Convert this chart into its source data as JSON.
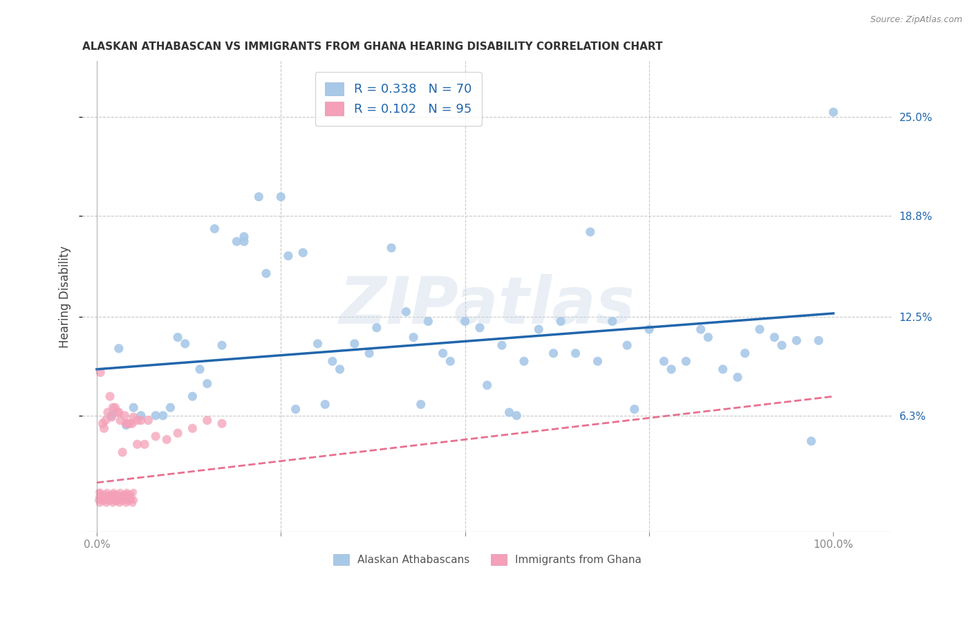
{
  "title": "ALASKAN ATHABASCAN VS IMMIGRANTS FROM GHANA HEARING DISABILITY CORRELATION CHART",
  "source": "Source: ZipAtlas.com",
  "ylabel": "Hearing Disability",
  "ytick_labels": [
    "6.3%",
    "12.5%",
    "18.8%",
    "25.0%"
  ],
  "ytick_values": [
    0.063,
    0.125,
    0.188,
    0.25
  ],
  "xlim": [
    -0.02,
    1.08
  ],
  "ylim": [
    -0.01,
    0.285
  ],
  "legend1_label": "R = 0.338   N = 70",
  "legend2_label": "R = 0.102   N = 95",
  "blue_color": "#a8c8e8",
  "pink_color": "#f4a0b8",
  "blue_line_color": "#2166ac",
  "pink_line_color": "#e87090",
  "background_color": "#ffffff",
  "watermark_text": "ZIPatlas",
  "blue_scatter_x": [
    0.03,
    0.05,
    0.08,
    0.1,
    0.13,
    0.15,
    0.17,
    0.2,
    0.2,
    0.22,
    0.25,
    0.28,
    0.3,
    0.32,
    0.35,
    0.38,
    0.4,
    0.42,
    0.45,
    0.48,
    0.5,
    0.52,
    0.55,
    0.58,
    0.6,
    0.63,
    0.65,
    0.68,
    0.7,
    0.72,
    0.75,
    0.78,
    0.8,
    0.82,
    0.85,
    0.88,
    0.9,
    0.92,
    0.95,
    0.98,
    1.0,
    0.06,
    0.09,
    0.12,
    0.16,
    0.19,
    0.23,
    0.27,
    0.33,
    0.37,
    0.43,
    0.47,
    0.53,
    0.57,
    0.62,
    0.67,
    0.73,
    0.77,
    0.83,
    0.87,
    0.93,
    0.97,
    0.02,
    0.04,
    0.11,
    0.14,
    0.26,
    0.31,
    0.44,
    0.56
  ],
  "blue_scatter_y": [
    0.105,
    0.068,
    0.063,
    0.068,
    0.075,
    0.083,
    0.107,
    0.175,
    0.172,
    0.2,
    0.2,
    0.165,
    0.108,
    0.097,
    0.108,
    0.118,
    0.168,
    0.128,
    0.122,
    0.097,
    0.122,
    0.118,
    0.107,
    0.097,
    0.117,
    0.122,
    0.102,
    0.097,
    0.122,
    0.107,
    0.117,
    0.092,
    0.097,
    0.117,
    0.092,
    0.102,
    0.117,
    0.112,
    0.11,
    0.11,
    0.253,
    0.063,
    0.063,
    0.108,
    0.18,
    0.172,
    0.152,
    0.067,
    0.092,
    0.102,
    0.112,
    0.102,
    0.082,
    0.063,
    0.102,
    0.178,
    0.067,
    0.097,
    0.112,
    0.087,
    0.107,
    0.047,
    0.063,
    0.057,
    0.112,
    0.092,
    0.163,
    0.07,
    0.07,
    0.065
  ],
  "pink_scatter_x_dense": [
    0.002,
    0.003,
    0.004,
    0.005,
    0.006,
    0.007,
    0.008,
    0.009,
    0.01,
    0.011,
    0.012,
    0.013,
    0.014,
    0.015,
    0.016,
    0.017,
    0.018,
    0.019,
    0.02,
    0.021,
    0.022,
    0.023,
    0.024,
    0.025,
    0.026,
    0.027,
    0.028,
    0.029,
    0.03,
    0.031,
    0.032,
    0.033,
    0.034,
    0.035,
    0.036,
    0.037,
    0.038,
    0.039,
    0.04,
    0.041,
    0.042,
    0.043,
    0.044,
    0.045,
    0.046,
    0.047,
    0.048,
    0.049,
    0.05,
    0.051,
    0.003,
    0.006,
    0.009,
    0.012,
    0.015,
    0.018,
    0.021,
    0.024,
    0.027,
    0.03,
    0.033,
    0.036,
    0.039,
    0.042,
    0.045
  ],
  "pink_scatter_y_dense": [
    0.01,
    0.012,
    0.008,
    0.015,
    0.01,
    0.013,
    0.009,
    0.011,
    0.014,
    0.01,
    0.012,
    0.008,
    0.015,
    0.01,
    0.013,
    0.009,
    0.011,
    0.014,
    0.01,
    0.012,
    0.008,
    0.015,
    0.01,
    0.013,
    0.009,
    0.011,
    0.014,
    0.01,
    0.012,
    0.008,
    0.015,
    0.01,
    0.013,
    0.009,
    0.011,
    0.014,
    0.01,
    0.012,
    0.008,
    0.015,
    0.01,
    0.013,
    0.009,
    0.011,
    0.014,
    0.01,
    0.012,
    0.008,
    0.015,
    0.01,
    0.015,
    0.013,
    0.012,
    0.011,
    0.01,
    0.013,
    0.011,
    0.014,
    0.009,
    0.012,
    0.01,
    0.013,
    0.011,
    0.014,
    0.012
  ],
  "pink_scatter_x_sparse": [
    0.005,
    0.01,
    0.018,
    0.025,
    0.035,
    0.045,
    0.055,
    0.065,
    0.08,
    0.095,
    0.11,
    0.13,
    0.15,
    0.17,
    0.02,
    0.04,
    0.06,
    0.028,
    0.012,
    0.008,
    0.038,
    0.022,
    0.05,
    0.07,
    0.042,
    0.015,
    0.032,
    0.048,
    0.03,
    0.055
  ],
  "pink_scatter_y_sparse": [
    0.09,
    0.055,
    0.075,
    0.068,
    0.04,
    0.058,
    0.045,
    0.045,
    0.05,
    0.048,
    0.052,
    0.055,
    0.06,
    0.058,
    0.062,
    0.058,
    0.06,
    0.065,
    0.06,
    0.058,
    0.063,
    0.068,
    0.062,
    0.06,
    0.058,
    0.065,
    0.06,
    0.058,
    0.065,
    0.06
  ],
  "blue_line_y_start": 0.092,
  "blue_line_y_end": 0.127,
  "pink_line_y_start": 0.021,
  "pink_line_y_end": 0.075
}
